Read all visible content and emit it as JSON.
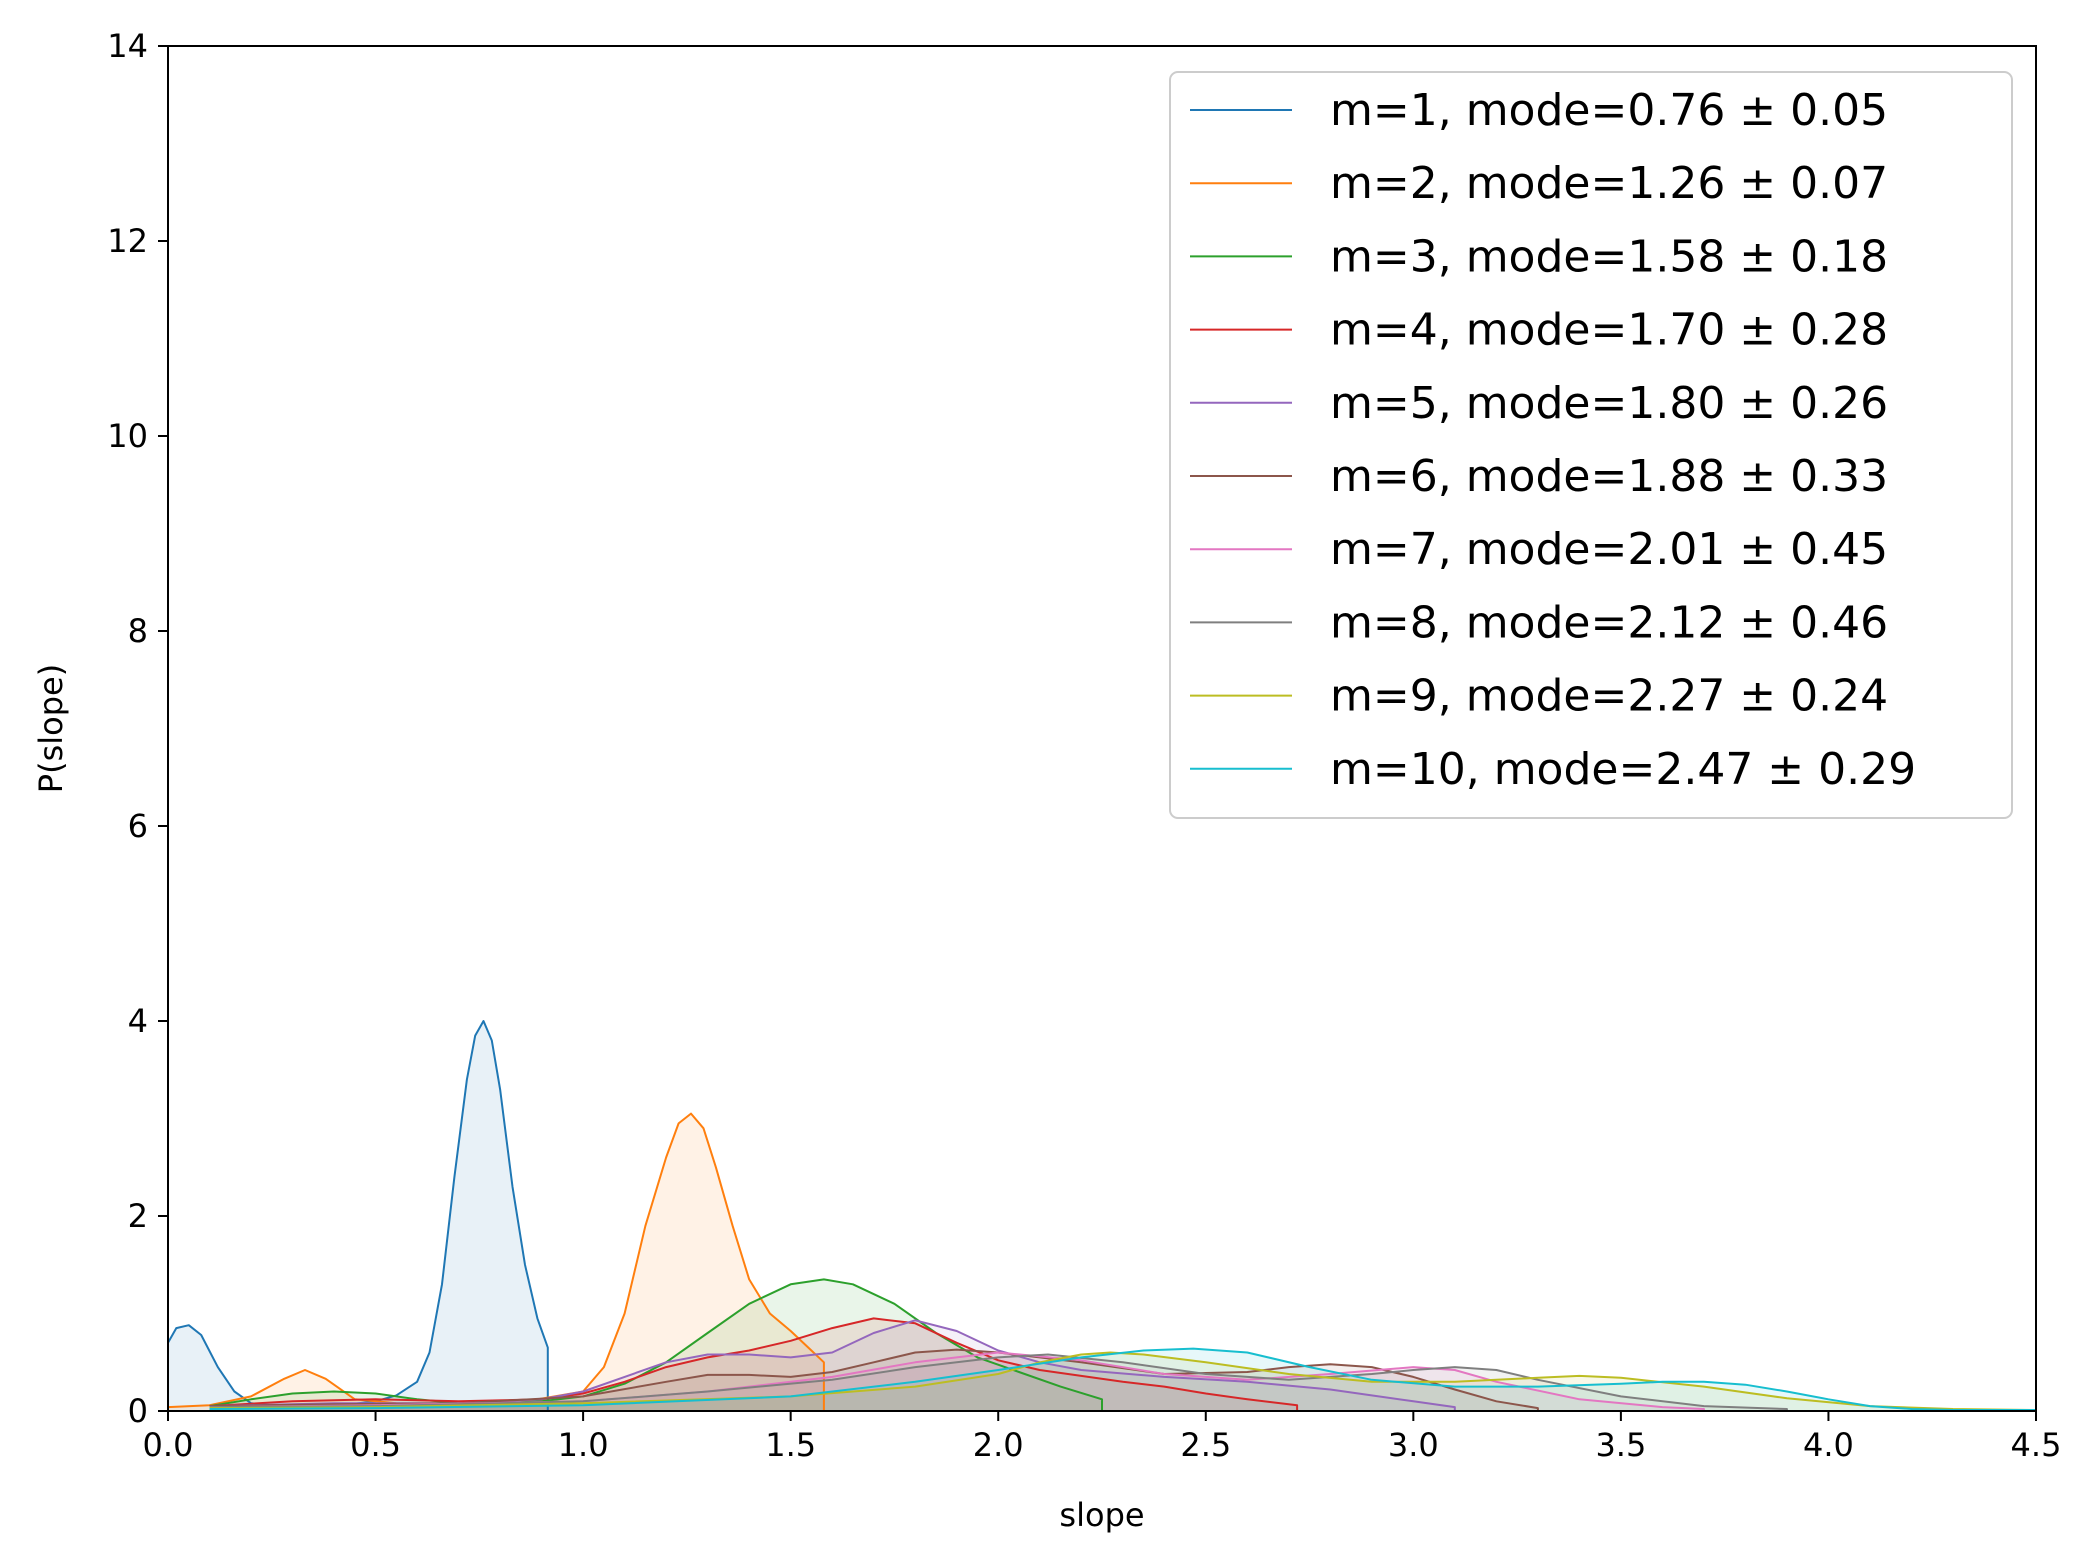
{
  "chart_data": {
    "type": "area",
    "xlabel": "slope",
    "ylabel": "P(slope)",
    "xlim": [
      0,
      4.5
    ],
    "ylim": [
      0,
      14
    ],
    "x_ticks": [
      "0.0",
      "0.5",
      "1.0",
      "1.5",
      "2.0",
      "2.5",
      "3.0",
      "3.5",
      "4.0",
      "4.5"
    ],
    "y_ticks": [
      "0",
      "2",
      "4",
      "6",
      "8",
      "10",
      "12",
      "14"
    ],
    "grid": false,
    "legend_position": "top-right",
    "series": [
      {
        "name": "m=1, mode=0.76 ± 0.05",
        "color": "#1f77b4",
        "x": [
          0,
          0.02,
          0.05,
          0.08,
          0.12,
          0.16,
          0.2,
          0.3,
          0.4,
          0.5,
          0.55,
          0.6,
          0.63,
          0.66,
          0.69,
          0.72,
          0.74,
          0.76,
          0.78,
          0.8,
          0.83,
          0.86,
          0.89,
          0.915,
          0.915
        ],
        "y": [
          0.7,
          0.85,
          0.88,
          0.78,
          0.45,
          0.2,
          0.08,
          0.04,
          0.05,
          0.1,
          0.16,
          0.3,
          0.6,
          1.3,
          2.4,
          3.4,
          3.85,
          4.0,
          3.8,
          3.3,
          2.3,
          1.5,
          0.95,
          0.65,
          0
        ]
      },
      {
        "name": "m=2, mode=1.26 ± 0.07",
        "color": "#ff7f0e",
        "x": [
          0,
          0.1,
          0.2,
          0.28,
          0.33,
          0.38,
          0.45,
          0.55,
          0.7,
          0.85,
          1.0,
          1.05,
          1.1,
          1.15,
          1.2,
          1.23,
          1.26,
          1.29,
          1.32,
          1.36,
          1.4,
          1.45,
          1.5,
          1.55,
          1.58,
          1.58
        ],
        "y": [
          0.04,
          0.06,
          0.15,
          0.33,
          0.42,
          0.33,
          0.12,
          0.08,
          0.07,
          0.09,
          0.2,
          0.45,
          1.0,
          1.9,
          2.6,
          2.95,
          3.05,
          2.9,
          2.5,
          1.9,
          1.35,
          1.0,
          0.82,
          0.62,
          0.5,
          0
        ]
      },
      {
        "name": "m=3, mode=1.58 ± 0.18",
        "color": "#2ca02c",
        "x": [
          0.1,
          0.2,
          0.3,
          0.4,
          0.5,
          0.6,
          0.7,
          0.8,
          0.9,
          1.0,
          1.1,
          1.2,
          1.3,
          1.4,
          1.5,
          1.58,
          1.65,
          1.75,
          1.85,
          1.95,
          2.05,
          2.15,
          2.25,
          2.25
        ],
        "y": [
          0.05,
          0.12,
          0.18,
          0.2,
          0.18,
          0.12,
          0.08,
          0.08,
          0.1,
          0.15,
          0.28,
          0.5,
          0.8,
          1.1,
          1.3,
          1.35,
          1.3,
          1.1,
          0.8,
          0.55,
          0.4,
          0.25,
          0.12,
          0
        ]
      },
      {
        "name": "m=4, mode=1.70 ± 0.28",
        "color": "#d62728",
        "x": [
          0.1,
          0.3,
          0.5,
          0.7,
          0.9,
          1.0,
          1.1,
          1.2,
          1.3,
          1.4,
          1.5,
          1.6,
          1.7,
          1.8,
          1.9,
          2.0,
          2.1,
          2.2,
          2.3,
          2.4,
          2.5,
          2.6,
          2.72,
          2.72
        ],
        "y": [
          0.05,
          0.1,
          0.12,
          0.1,
          0.12,
          0.18,
          0.3,
          0.45,
          0.55,
          0.62,
          0.72,
          0.85,
          0.95,
          0.9,
          0.7,
          0.52,
          0.42,
          0.36,
          0.3,
          0.25,
          0.18,
          0.12,
          0.06,
          0
        ]
      },
      {
        "name": "m=5, mode=1.80 ± 0.26",
        "color": "#9467bd",
        "x": [
          0.1,
          0.4,
          0.7,
          0.9,
          1.0,
          1.1,
          1.2,
          1.3,
          1.4,
          1.5,
          1.6,
          1.7,
          1.8,
          1.9,
          2.0,
          2.1,
          2.2,
          2.4,
          2.6,
          2.8,
          3.0,
          3.1,
          3.1
        ],
        "y": [
          0.05,
          0.08,
          0.08,
          0.12,
          0.2,
          0.35,
          0.5,
          0.58,
          0.58,
          0.55,
          0.6,
          0.8,
          0.93,
          0.82,
          0.62,
          0.5,
          0.42,
          0.35,
          0.3,
          0.22,
          0.1,
          0.04,
          0
        ]
      },
      {
        "name": "m=6, mode=1.88 ± 0.33",
        "color": "#8c564b",
        "x": [
          0.1,
          0.4,
          0.7,
          1.0,
          1.2,
          1.3,
          1.4,
          1.5,
          1.6,
          1.7,
          1.8,
          1.9,
          2.0,
          2.2,
          2.4,
          2.6,
          2.7,
          2.8,
          2.9,
          3.0,
          3.1,
          3.2,
          3.3,
          3.3
        ],
        "y": [
          0.05,
          0.07,
          0.08,
          0.15,
          0.3,
          0.37,
          0.37,
          0.35,
          0.4,
          0.5,
          0.6,
          0.63,
          0.6,
          0.5,
          0.38,
          0.4,
          0.45,
          0.48,
          0.45,
          0.35,
          0.22,
          0.1,
          0.03,
          0
        ]
      },
      {
        "name": "m=7, mode=2.01 ± 0.45",
        "color": "#e377c2",
        "x": [
          0.1,
          0.5,
          1.0,
          1.3,
          1.6,
          1.8,
          2.0,
          2.2,
          2.4,
          2.6,
          2.8,
          3.0,
          3.1,
          3.2,
          3.4,
          3.6,
          3.7,
          3.7
        ],
        "y": [
          0.04,
          0.06,
          0.1,
          0.2,
          0.35,
          0.5,
          0.6,
          0.52,
          0.38,
          0.32,
          0.38,
          0.45,
          0.42,
          0.3,
          0.12,
          0.04,
          0.02,
          0
        ]
      },
      {
        "name": "m=8, mode=2.12 ± 0.46",
        "color": "#7f7f7f",
        "x": [
          0.1,
          0.5,
          1.0,
          1.3,
          1.6,
          1.8,
          2.0,
          2.12,
          2.3,
          2.5,
          2.7,
          2.9,
          3.0,
          3.1,
          3.2,
          3.3,
          3.5,
          3.7,
          3.9,
          3.9
        ],
        "y": [
          0.04,
          0.05,
          0.1,
          0.2,
          0.32,
          0.45,
          0.55,
          0.58,
          0.5,
          0.38,
          0.32,
          0.38,
          0.42,
          0.45,
          0.42,
          0.32,
          0.15,
          0.05,
          0.02,
          0
        ]
      },
      {
        "name": "m=9, mode=2.27 ± 0.24",
        "color": "#bcbd22",
        "x": [
          0.1,
          0.5,
          1.0,
          1.5,
          1.8,
          2.0,
          2.1,
          2.2,
          2.27,
          2.35,
          2.5,
          2.7,
          2.9,
          3.1,
          3.3,
          3.4,
          3.5,
          3.7,
          3.9,
          4.1,
          4.3,
          4.5,
          4.5
        ],
        "y": [
          0.03,
          0.04,
          0.08,
          0.15,
          0.25,
          0.38,
          0.5,
          0.58,
          0.6,
          0.58,
          0.5,
          0.38,
          0.3,
          0.3,
          0.34,
          0.36,
          0.34,
          0.25,
          0.13,
          0.05,
          0.02,
          0.01,
          0
        ]
      },
      {
        "name": "m=10, mode=2.47 ± 0.29",
        "color": "#17becf",
        "x": [
          0.1,
          0.5,
          1.0,
          1.5,
          1.8,
          2.0,
          2.2,
          2.35,
          2.47,
          2.6,
          2.75,
          2.9,
          3.1,
          3.3,
          3.5,
          3.6,
          3.7,
          3.8,
          3.9,
          4.0,
          4.1,
          4.2,
          4.3,
          4.5,
          4.5
        ],
        "y": [
          0.02,
          0.03,
          0.06,
          0.15,
          0.3,
          0.42,
          0.55,
          0.62,
          0.64,
          0.6,
          0.45,
          0.32,
          0.25,
          0.25,
          0.28,
          0.3,
          0.3,
          0.27,
          0.2,
          0.12,
          0.05,
          0.02,
          0.01,
          0.01,
          0
        ]
      }
    ]
  }
}
